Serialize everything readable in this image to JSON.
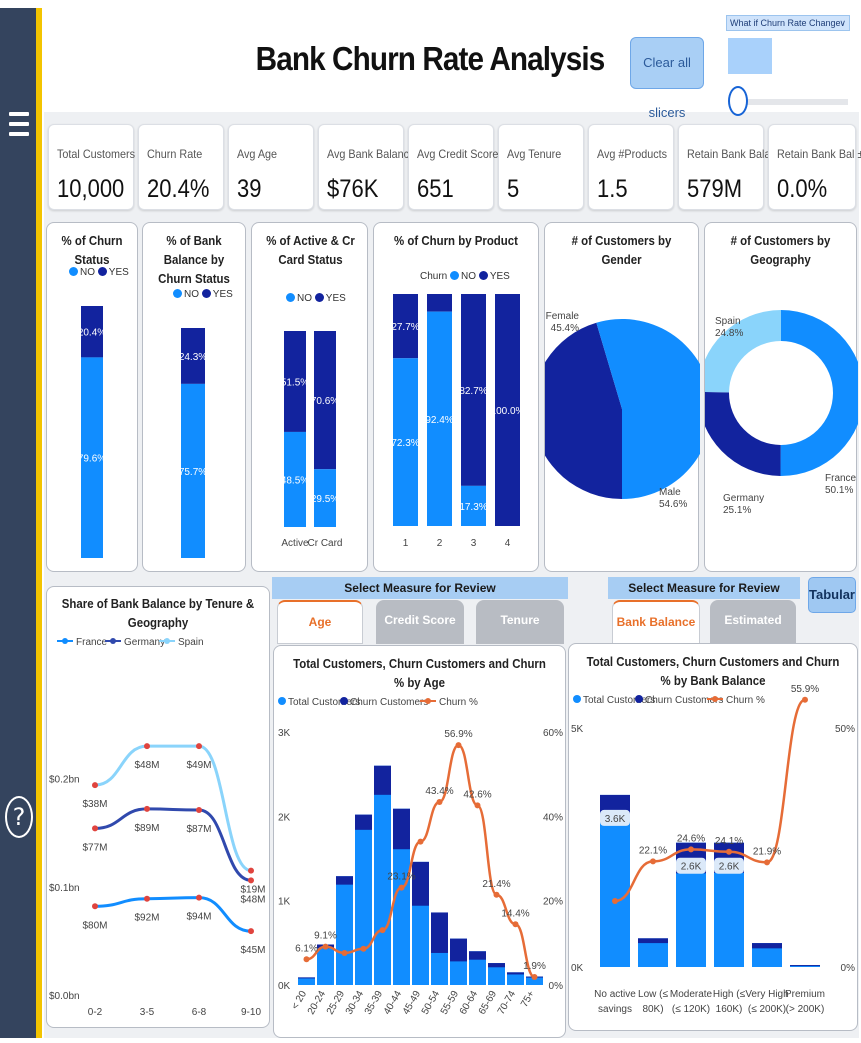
{
  "header": {
    "title": "Bank Churn Rate Analysis",
    "clear_button": "Clear all slicers",
    "whatif_label": "What if Churn Rate Change"
  },
  "kpis": [
    {
      "label": "Total Customers",
      "value": "10,000"
    },
    {
      "label": "Churn Rate",
      "value": "20.4%"
    },
    {
      "label": "Avg Age",
      "value": "39"
    },
    {
      "label": "Avg Bank Balance",
      "value": "$76K"
    },
    {
      "label": "Avg Credit Score",
      "value": "651"
    },
    {
      "label": "Avg Tenure",
      "value": "5"
    },
    {
      "label": "Avg #Products",
      "value": "1.5"
    },
    {
      "label": "Retain Bank Balance",
      "value": "579M"
    },
    {
      "label": "Retain Bank Bal ±",
      "value": "0.0%"
    }
  ],
  "colors": {
    "no": "#118dff",
    "yes": "#12239e",
    "churn_line": "#e66c37",
    "spain": "#8ad4fb",
    "france": "#118dff",
    "germany": "#3049ad",
    "tab_active": "#e8702a"
  },
  "legend": {
    "no": "NO",
    "yes": "YES",
    "churn": "Churn"
  },
  "measure": {
    "select_label": "Select Measure for Review",
    "left_tabs": [
      "Age",
      "Credit Score",
      "Tenure"
    ],
    "right_tabs": [
      "Bank Balance",
      "Estimated Salary"
    ],
    "tabular_button": "Tabular"
  },
  "chart_data": [
    {
      "type": "bar",
      "title": "% of Churn Status",
      "legend": [
        "NO",
        "YES"
      ],
      "series": [
        {
          "name": "NO",
          "values": [
            79.6
          ]
        },
        {
          "name": "YES",
          "values": [
            20.4
          ]
        }
      ],
      "labels": {
        "NO": [
          "79.6%"
        ],
        "YES": [
          "20.4%"
        ]
      }
    },
    {
      "type": "bar",
      "title": "% of Bank Balance by Churn Status",
      "legend": [
        "NO",
        "YES"
      ],
      "series": [
        {
          "name": "NO",
          "values": [
            75.7
          ]
        },
        {
          "name": "YES",
          "values": [
            24.3
          ]
        }
      ],
      "labels": {
        "NO": [
          "75.7%"
        ],
        "YES": [
          "24.3%"
        ]
      }
    },
    {
      "type": "bar",
      "title": "% of Active & Cr Card Status",
      "legend": [
        "NO",
        "YES"
      ],
      "categories": [
        "Active",
        "Cr Card"
      ],
      "series": [
        {
          "name": "NO",
          "values": [
            48.5,
            29.5
          ]
        },
        {
          "name": "YES",
          "values": [
            51.5,
            70.6
          ]
        }
      ],
      "labels": {
        "NO": [
          "48.5%",
          "29.5%"
        ],
        "YES": [
          "51.5%",
          "70.6%"
        ]
      }
    },
    {
      "type": "bar",
      "title": "% of Churn by Product",
      "legend_title": "Churn",
      "legend": [
        "NO",
        "YES"
      ],
      "categories": [
        "1",
        "2",
        "3",
        "4"
      ],
      "series": [
        {
          "name": "NO",
          "values": [
            72.3,
            92.4,
            17.3,
            0
          ]
        },
        {
          "name": "YES",
          "values": [
            27.7,
            7.6,
            82.7,
            100.0
          ]
        }
      ],
      "labels": {
        "NO": [
          "72.3%",
          "92.4%",
          "17.3%",
          ""
        ],
        "YES": [
          "27.7%",
          "",
          "82.7%",
          "100.0%"
        ]
      }
    },
    {
      "type": "pie",
      "title": "# of Customers by Gender",
      "slices": [
        {
          "label": "Female",
          "value": 45.4,
          "text": "45.4%"
        },
        {
          "label": "Male",
          "value": 54.6,
          "text": "54.6%"
        }
      ]
    },
    {
      "type": "pie",
      "title": "# of Customers by Geography",
      "donut": true,
      "slices": [
        {
          "label": "France",
          "value": 50.1,
          "text": "50.1%"
        },
        {
          "label": "Germany",
          "value": 25.1,
          "text": "25.1%"
        },
        {
          "label": "Spain",
          "value": 24.8,
          "text": "24.8%"
        }
      ]
    },
    {
      "type": "line",
      "title": "Share of Bank Balance by Tenure & Geography",
      "categories": [
        "0-2",
        "3-5",
        "6-8",
        "9-10"
      ],
      "y_ticks": [
        "$0.2bn",
        "$0.1bn",
        "$0.0bn"
      ],
      "ylim": [
        0,
        0.22
      ],
      "series": [
        {
          "name": "France",
          "values": [
            0.082,
            0.089,
            0.09,
            0.059
          ],
          "labels": [
            "$80M",
            "$92M",
            "$94M",
            "$45M"
          ]
        },
        {
          "name": "Germany",
          "values": [
            0.154,
            0.172,
            0.171,
            0.106
          ],
          "labels": [
            "$77M",
            "$89M",
            "$87M",
            "$48M"
          ]
        },
        {
          "name": "Spain",
          "values": [
            0.194,
            0.23,
            0.23,
            0.115
          ],
          "labels": [
            "$38M",
            "$48M",
            "$49M",
            "$19M"
          ]
        }
      ]
    },
    {
      "type": "bar",
      "title": "Total Customers, Churn Customers and Churn % by Age",
      "legend": [
        "Total Customers",
        "Churn Customers",
        "Churn %"
      ],
      "categories": [
        "< 20",
        "20-24",
        "25-29",
        "30-34",
        "35-39",
        "40-44",
        "45-49",
        "50-54",
        "55-59",
        "60-64",
        "65-69",
        "70-74",
        "75+"
      ],
      "series": [
        {
          "name": "Total Customers",
          "values": [
            90,
            480,
            1290,
            2020,
            2600,
            2090,
            1460,
            860,
            550,
            400,
            260,
            150,
            100
          ]
        },
        {
          "name": "Churn Customers",
          "values": [
            6,
            44,
            100,
            180,
            345,
            480,
            520,
            480,
            270,
            100,
            50,
            25,
            5
          ]
        },
        {
          "name": "Churn %",
          "values": [
            6.1,
            9.1,
            7.6,
            8.6,
            13.0,
            23.1,
            34.0,
            43.4,
            56.9,
            42.6,
            21.4,
            14.4,
            1.9
          ]
        }
      ],
      "point_labels": [
        "6.1%",
        "9.1%",
        "",
        "",
        "",
        "23.1%",
        "",
        "43.4%",
        "56.9%",
        "42.6%",
        "21.4%",
        "14.4%",
        "1.9%"
      ],
      "y_ticks": [
        "3K",
        "2K",
        "1K",
        "0K"
      ],
      "y2_ticks": [
        "60%",
        "40%",
        "20%",
        "0%"
      ],
      "ylim": [
        0,
        3000
      ],
      "y2lim": [
        0,
        60
      ]
    },
    {
      "type": "bar",
      "title": "Total Customers, Churn Customers and Churn % by Bank Balance",
      "legend": [
        "Total Customers",
        "Churn Customers",
        "Churn %"
      ],
      "categories": [
        "No active savings",
        "Low (≤ 80K)",
        "Moderate (≤ 120K)",
        "High (≤ 160K)",
        "Very High (≤ 200K)",
        "Premium (> 200K)"
      ],
      "series": [
        {
          "name": "Total Customers",
          "values": [
            3600,
            600,
            2600,
            2600,
            500,
            40
          ]
        },
        {
          "name": "Churn Customers",
          "values": [
            500,
            100,
            640,
            630,
            110,
            20
          ]
        },
        {
          "name": "Churn %",
          "values": [
            13.8,
            22.1,
            24.6,
            24.1,
            21.9,
            55.9
          ]
        }
      ],
      "value_labels": [
        "3.6K",
        "",
        "2.6K",
        "2.6K",
        "",
        ""
      ],
      "point_labels": [
        "",
        "22.1%",
        "24.6%",
        "24.1%",
        "21.9%",
        "55.9%"
      ],
      "y_ticks": [
        "5K",
        "0K"
      ],
      "y2_ticks": [
        "50%",
        "0%"
      ],
      "ylim": [
        0,
        5000
      ],
      "y2lim": [
        0,
        50
      ]
    }
  ]
}
